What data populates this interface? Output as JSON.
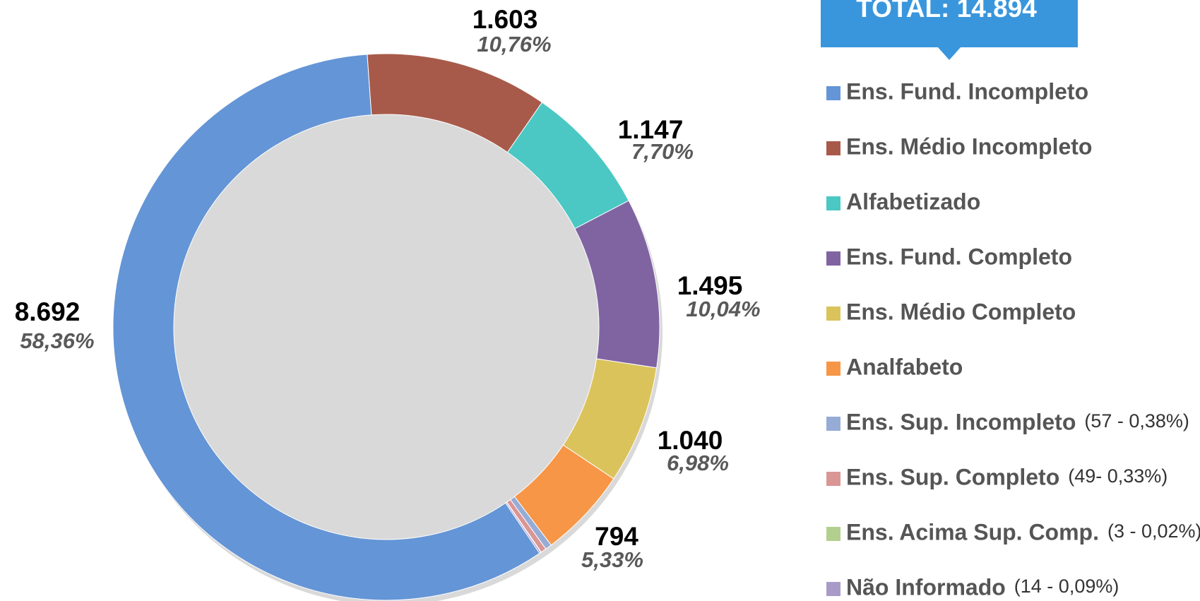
{
  "chart_data": {
    "type": "donut",
    "total_label": "TOTAL: 14.894",
    "categories": [
      "Ens. Fund. Incompleto",
      "Ens. Médio Incompleto",
      "Alfabetizado",
      "Ens. Fund. Completo",
      "Ens. Médio Completo",
      "Analfabeto",
      "Ens. Sup. Incompleto",
      "Ens. Sup. Completo",
      "Ens. Acima Sup. Comp.",
      "Não Informado"
    ],
    "values": [
      8692,
      1603,
      1147,
      1495,
      1040,
      794,
      57,
      49,
      3,
      14
    ],
    "value_labels": [
      "8.692",
      "1.603",
      "1.147",
      "1.495",
      "1.040",
      "794",
      null,
      null,
      null,
      null
    ],
    "percent_labels": [
      "58,36%",
      "10,76%",
      "7,70%",
      "10,04%",
      "6,98%",
      "5,33%",
      null,
      null,
      null,
      null
    ],
    "legend_notes": [
      null,
      null,
      null,
      null,
      null,
      null,
      "(57 - 0,38%)",
      "(49- 0,33%)",
      "(3 - 0,02%)",
      "(14 - 0,09%)"
    ],
    "colors": [
      "#6495d6",
      "#a85a4a",
      "#4bc8c4",
      "#8064a2",
      "#dbc35c",
      "#f79646",
      "#96acd6",
      "#d99694",
      "#b3cf8e",
      "#a99bc8"
    ]
  }
}
